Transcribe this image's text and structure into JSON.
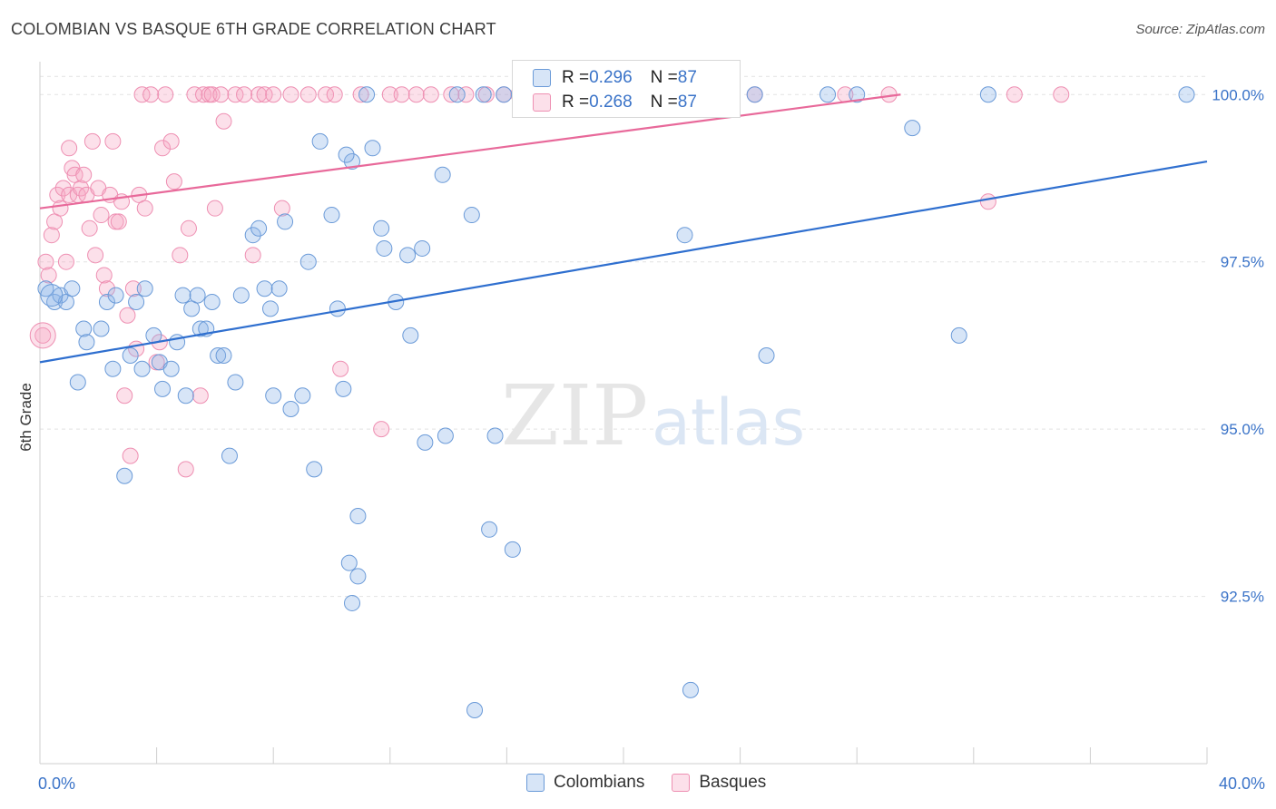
{
  "title": "COLOMBIAN VS BASQUE 6TH GRADE CORRELATION CHART",
  "source": "Source: ZipAtlas.com",
  "legend_top": [
    {
      "r_label": "R = ",
      "r_value": "0.296",
      "n_label": "N = ",
      "n_value": "87"
    },
    {
      "r_label": "R = ",
      "r_value": "0.268",
      "n_label": "N = ",
      "n_value": "87"
    }
  ],
  "legend_bottom": [
    "Colombians",
    "Basques"
  ],
  "colors": {
    "colombians_fill": "rgba(140,180,232,0.35)",
    "colombians_stroke": "#6a9ad8",
    "colombians_line": "#2f6fcf",
    "basques_fill": "rgba(246,166,196,0.35)",
    "basques_stroke": "#ee8fb2",
    "basques_line": "#e8699a",
    "tick_label": "#3a73c8",
    "grid": "#e2e2e2"
  },
  "watermark": {
    "zip": "ZIP",
    "atlas": "atlas"
  },
  "chart_data": {
    "type": "scatter",
    "title": "COLOMBIAN VS BASQUE 6TH GRADE CORRELATION CHART",
    "xlabel": "",
    "ylabel": "6th Grade",
    "xlim": [
      0,
      40
    ],
    "ylim": [
      90.0,
      100.6
    ],
    "x_tick_labels": [
      "0.0%",
      "40.0%"
    ],
    "y_ticks": [
      92.5,
      95.0,
      97.5,
      100.0
    ],
    "y_tick_labels": [
      "92.5%",
      "95.0%",
      "97.5%",
      "100.0%"
    ],
    "grid": true,
    "legend_position": "top-center",
    "series": [
      {
        "name": "Colombians",
        "trend": {
          "x": [
            0,
            40
          ],
          "y": [
            96.0,
            99.0
          ]
        },
        "points": [
          [
            0.2,
            97.1
          ],
          [
            0.5,
            96.9
          ],
          [
            0.7,
            97.0
          ],
          [
            0.9,
            96.9
          ],
          [
            1.1,
            97.1
          ],
          [
            1.3,
            95.7
          ],
          [
            1.5,
            96.5
          ],
          [
            1.6,
            96.3
          ],
          [
            2.1,
            96.5
          ],
          [
            2.3,
            96.9
          ],
          [
            2.5,
            95.9
          ],
          [
            2.6,
            97.0
          ],
          [
            2.9,
            94.3
          ],
          [
            3.1,
            96.1
          ],
          [
            3.3,
            96.9
          ],
          [
            3.5,
            95.9
          ],
          [
            3.6,
            97.1
          ],
          [
            3.9,
            96.4
          ],
          [
            4.1,
            96.0
          ],
          [
            4.2,
            95.6
          ],
          [
            4.5,
            95.9
          ],
          [
            4.7,
            96.3
          ],
          [
            4.9,
            97.0
          ],
          [
            5.0,
            95.5
          ],
          [
            5.2,
            96.8
          ],
          [
            5.4,
            97.0
          ],
          [
            5.5,
            96.5
          ],
          [
            5.7,
            96.5
          ],
          [
            5.9,
            96.9
          ],
          [
            6.1,
            96.1
          ],
          [
            6.3,
            96.1
          ],
          [
            6.5,
            94.6
          ],
          [
            6.7,
            95.7
          ],
          [
            6.9,
            97.0
          ],
          [
            7.3,
            97.9
          ],
          [
            7.5,
            98.0
          ],
          [
            7.7,
            97.1
          ],
          [
            7.9,
            96.8
          ],
          [
            8.0,
            95.5
          ],
          [
            8.2,
            97.1
          ],
          [
            8.4,
            98.1
          ],
          [
            8.6,
            95.3
          ],
          [
            9.0,
            95.5
          ],
          [
            9.2,
            97.5
          ],
          [
            9.4,
            94.4
          ],
          [
            9.6,
            99.3
          ],
          [
            10.0,
            98.2
          ],
          [
            10.2,
            96.8
          ],
          [
            10.6,
            93.0
          ],
          [
            10.9,
            92.8
          ],
          [
            10.7,
            99.0
          ],
          [
            10.5,
            99.1
          ],
          [
            10.4,
            95.6
          ],
          [
            10.7,
            92.4
          ],
          [
            10.9,
            93.7
          ],
          [
            11.2,
            100.0
          ],
          [
            11.4,
            99.2
          ],
          [
            11.7,
            98.0
          ],
          [
            11.8,
            97.7
          ],
          [
            12.2,
            96.9
          ],
          [
            12.6,
            97.6
          ],
          [
            12.7,
            96.4
          ],
          [
            13.1,
            97.7
          ],
          [
            13.2,
            94.8
          ],
          [
            13.8,
            98.8
          ],
          [
            13.9,
            94.9
          ],
          [
            14.3,
            100.0
          ],
          [
            14.8,
            98.2
          ],
          [
            14.9,
            90.8
          ],
          [
            15.2,
            100.0
          ],
          [
            15.4,
            93.5
          ],
          [
            15.6,
            94.9
          ],
          [
            15.9,
            100.0
          ],
          [
            16.2,
            93.2
          ],
          [
            17.5,
            100.0
          ],
          [
            19.0,
            100.0
          ],
          [
            22.1,
            97.9
          ],
          [
            22.3,
            91.1
          ],
          [
            24.5,
            100.0
          ],
          [
            24.9,
            96.1
          ],
          [
            27.0,
            100.0
          ],
          [
            28.0,
            100.0
          ],
          [
            29.9,
            99.5
          ],
          [
            31.5,
            96.4
          ],
          [
            32.5,
            100.0
          ],
          [
            39.3,
            100.0
          ],
          [
            0.4,
            97.0
          ]
        ]
      },
      {
        "name": "Basques",
        "trend": {
          "x": [
            0,
            29.5
          ],
          "y": [
            98.3,
            100.0
          ]
        },
        "points": [
          [
            0.1,
            96.4
          ],
          [
            0.2,
            97.5
          ],
          [
            0.3,
            97.3
          ],
          [
            0.4,
            97.9
          ],
          [
            0.5,
            98.1
          ],
          [
            0.6,
            98.5
          ],
          [
            0.7,
            98.3
          ],
          [
            0.8,
            98.6
          ],
          [
            0.9,
            97.5
          ],
          [
            1.0,
            98.5
          ],
          [
            1.1,
            98.9
          ],
          [
            1.2,
            98.8
          ],
          [
            1.3,
            98.5
          ],
          [
            1.4,
            98.6
          ],
          [
            1.5,
            98.8
          ],
          [
            1.6,
            98.5
          ],
          [
            1.7,
            98.0
          ],
          [
            1.8,
            99.3
          ],
          [
            1.9,
            97.6
          ],
          [
            2.0,
            98.6
          ],
          [
            2.1,
            98.2
          ],
          [
            2.2,
            97.3
          ],
          [
            2.3,
            97.1
          ],
          [
            2.4,
            98.5
          ],
          [
            2.5,
            99.3
          ],
          [
            2.6,
            98.1
          ],
          [
            2.7,
            98.1
          ],
          [
            2.8,
            98.4
          ],
          [
            2.9,
            95.5
          ],
          [
            3.0,
            96.7
          ],
          [
            3.1,
            94.6
          ],
          [
            3.2,
            97.1
          ],
          [
            3.3,
            96.2
          ],
          [
            3.4,
            98.5
          ],
          [
            3.5,
            100.0
          ],
          [
            3.6,
            98.3
          ],
          [
            3.8,
            100.0
          ],
          [
            4.0,
            96.0
          ],
          [
            4.1,
            96.3
          ],
          [
            4.2,
            99.2
          ],
          [
            4.3,
            100.0
          ],
          [
            4.5,
            99.3
          ],
          [
            4.6,
            98.7
          ],
          [
            4.8,
            97.6
          ],
          [
            5.0,
            94.4
          ],
          [
            5.1,
            98.0
          ],
          [
            5.3,
            100.0
          ],
          [
            5.5,
            95.5
          ],
          [
            5.6,
            100.0
          ],
          [
            5.8,
            100.0
          ],
          [
            5.9,
            100.0
          ],
          [
            6.0,
            98.3
          ],
          [
            6.2,
            100.0
          ],
          [
            6.3,
            99.6
          ],
          [
            6.7,
            100.0
          ],
          [
            7.0,
            100.0
          ],
          [
            7.3,
            97.6
          ],
          [
            7.5,
            100.0
          ],
          [
            7.7,
            100.0
          ],
          [
            8.0,
            100.0
          ],
          [
            8.3,
            98.3
          ],
          [
            8.6,
            100.0
          ],
          [
            9.2,
            100.0
          ],
          [
            9.8,
            100.0
          ],
          [
            10.1,
            100.0
          ],
          [
            10.3,
            95.9
          ],
          [
            11.0,
            100.0
          ],
          [
            11.7,
            95.0
          ],
          [
            12.0,
            100.0
          ],
          [
            12.4,
            100.0
          ],
          [
            12.9,
            100.0
          ],
          [
            13.4,
            100.0
          ],
          [
            14.1,
            100.0
          ],
          [
            14.6,
            100.0
          ],
          [
            15.3,
            100.0
          ],
          [
            15.9,
            100.0
          ],
          [
            16.4,
            100.0
          ],
          [
            17.0,
            100.0
          ],
          [
            20.0,
            100.0
          ],
          [
            23.7,
            100.0
          ],
          [
            24.5,
            100.0
          ],
          [
            27.6,
            100.0
          ],
          [
            29.1,
            100.0
          ],
          [
            32.5,
            98.4
          ],
          [
            33.4,
            100.0
          ],
          [
            35.0,
            100.0
          ],
          [
            1.0,
            99.2
          ]
        ]
      }
    ]
  }
}
